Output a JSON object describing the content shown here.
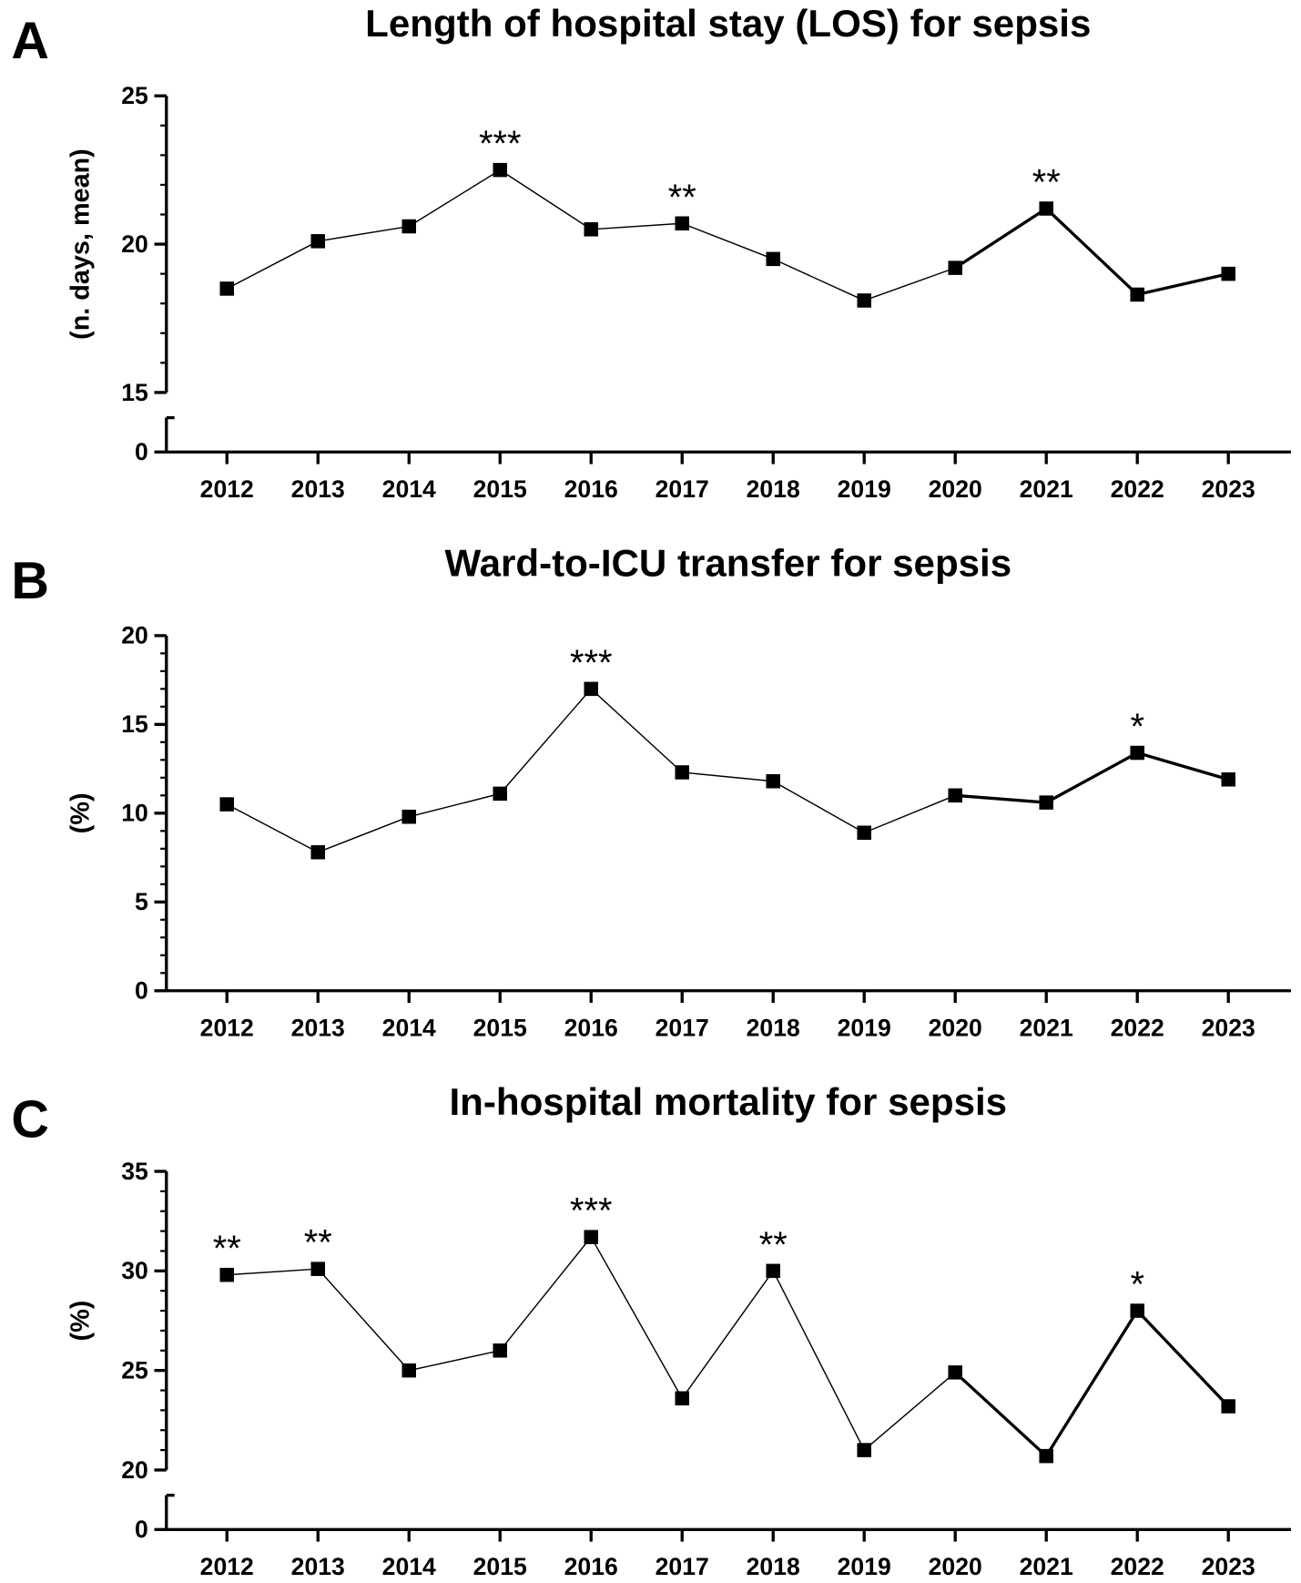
{
  "chart_data": [
    {
      "type": "line",
      "panel": "A",
      "title": "Length of hospital stay (LOS) for sepsis",
      "xlabel": "",
      "ylabel": "(n. days, mean)",
      "ylim": [
        15,
        25
      ],
      "axis_break": true,
      "yticks": [
        "25",
        "20",
        "15"
      ],
      "ytick_values": [
        25,
        20,
        15
      ],
      "zero_label": "0",
      "x": [
        "2012",
        "2013",
        "2014",
        "2015",
        "2016",
        "2017",
        "2018",
        "2019",
        "2020",
        "2021",
        "2022",
        "2023"
      ],
      "values": [
        18.5,
        20.1,
        20.6,
        22.5,
        20.5,
        20.7,
        19.5,
        18.1,
        19.2,
        21.2,
        18.3,
        19.0
      ],
      "annotations": [
        "",
        "",
        "",
        "***",
        "",
        "**",
        "",
        "",
        "",
        "**",
        "",
        ""
      ]
    },
    {
      "type": "line",
      "panel": "B",
      "title": "Ward-to-ICU transfer for sepsis",
      "xlabel": "",
      "ylabel": "(%)",
      "ylim": [
        0,
        20
      ],
      "axis_break": false,
      "yticks": [
        "20",
        "15",
        "10",
        "5",
        "0"
      ],
      "ytick_values": [
        20,
        15,
        10,
        5,
        0
      ],
      "x": [
        "2012",
        "2013",
        "2014",
        "2015",
        "2016",
        "2017",
        "2018",
        "2019",
        "2020",
        "2021",
        "2022",
        "2023"
      ],
      "values": [
        10.5,
        7.8,
        9.8,
        11.1,
        17.0,
        12.3,
        11.8,
        8.9,
        11.0,
        10.6,
        13.4,
        11.9
      ],
      "annotations": [
        "",
        "",
        "",
        "",
        "***",
        "",
        "",
        "",
        "",
        "",
        "*",
        ""
      ]
    },
    {
      "type": "line",
      "panel": "C",
      "title": "In-hospital mortality for sepsis",
      "xlabel": "",
      "ylabel": "(%)",
      "ylim": [
        20,
        35
      ],
      "axis_break": true,
      "yticks": [
        "35",
        "30",
        "25",
        "20"
      ],
      "ytick_values": [
        35,
        30,
        25,
        20
      ],
      "zero_label": "0",
      "x": [
        "2012",
        "2013",
        "2014",
        "2015",
        "2016",
        "2017",
        "2018",
        "2019",
        "2020",
        "2021",
        "2022",
        "2023"
      ],
      "values": [
        29.8,
        30.1,
        25.0,
        26.0,
        31.7,
        23.6,
        30.0,
        21.0,
        24.9,
        20.7,
        28.0,
        23.2
      ],
      "annotations": [
        "**",
        "**",
        "",
        "",
        "***",
        "",
        "**",
        "",
        "",
        "",
        "*",
        ""
      ]
    }
  ]
}
